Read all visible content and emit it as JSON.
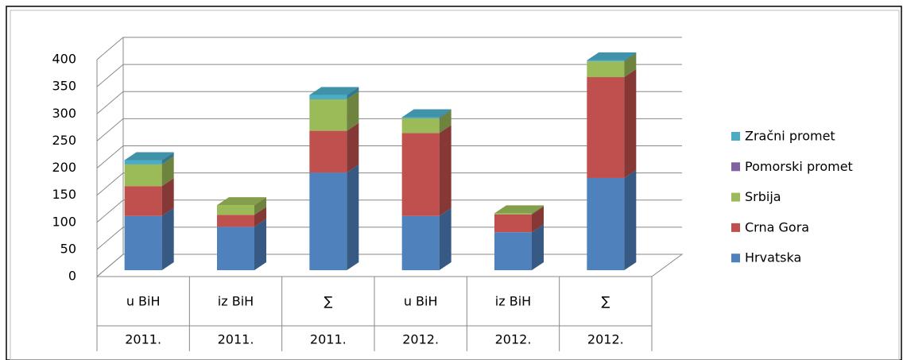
{
  "chart_data": {
    "type": "bar3d_stacked",
    "categories": [
      [
        "u BiH",
        "2011."
      ],
      [
        "iz BiH",
        "2011."
      ],
      [
        "∑",
        "2011."
      ],
      [
        "u BiH",
        "2012."
      ],
      [
        "iz BiH",
        "2012."
      ],
      [
        "∑",
        "2012."
      ]
    ],
    "series": [
      {
        "name": "Hrvatska",
        "color": "#4f81bd",
        "values": [
          100,
          80,
          180,
          100,
          70,
          170
        ]
      },
      {
        "name": "Crna Gora",
        "color": "#c0504d",
        "values": [
          55,
          22,
          77,
          153,
          33,
          186
        ]
      },
      {
        "name": "Srbija",
        "color": "#9bbb59",
        "values": [
          40,
          18,
          58,
          27,
          2,
          29
        ]
      },
      {
        "name": "Pomorski promet",
        "color": "#8064a2",
        "values": [
          0,
          0,
          0,
          0,
          0,
          0
        ]
      },
      {
        "name": "Zračni promet",
        "color": "#4bacc6",
        "values": [
          8,
          0,
          8,
          2,
          0,
          2
        ]
      }
    ],
    "ylim": [
      0,
      400
    ],
    "yticks": [
      0,
      50,
      100,
      150,
      200,
      250,
      300,
      350,
      400
    ],
    "grid": true,
    "legend": "right"
  }
}
